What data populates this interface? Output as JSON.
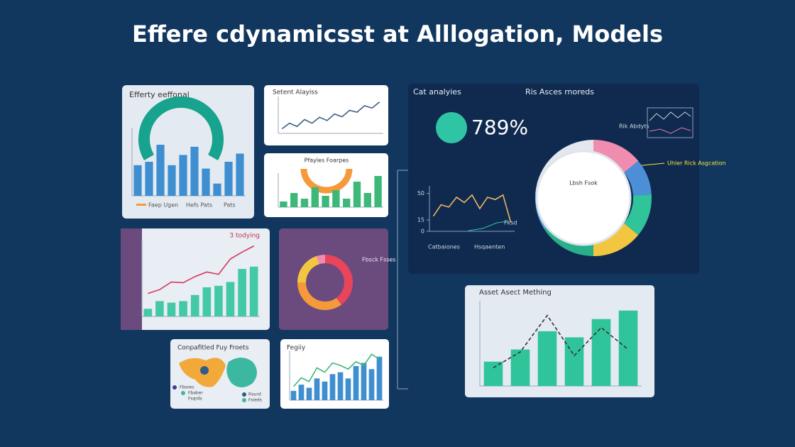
{
  "title": "Effere cdynamicsst at Alllogation, Models",
  "efficiency": {
    "title": "Efferty eeffonal",
    "legend": [
      "Faep Ugen",
      "Hefs Pats",
      "Pats"
    ],
    "ylim": [
      0,
      100
    ],
    "bars": {
      "color": "#3f8fd0",
      "values": [
        45,
        50,
        75,
        45,
        60,
        72,
        40,
        18,
        50,
        62
      ]
    }
  },
  "sentiment": {
    "title": "Setent Alayiss",
    "ylim": [
      0,
      80
    ],
    "line": {
      "color": "#3d5f86",
      "values": [
        10,
        22,
        15,
        30,
        22,
        35,
        28,
        42,
        36,
        50,
        46,
        60,
        55,
        68
      ]
    }
  },
  "profiles": {
    "title": "Pfayles Foarpes",
    "ylim": [
      0,
      60
    ],
    "bars": {
      "color": "#3cb878",
      "values": [
        10,
        25,
        15,
        35,
        20,
        30,
        15,
        45,
        25,
        55
      ]
    }
  },
  "trend": {
    "title": "3 todying",
    "ylim": [
      0,
      100
    ],
    "bars": {
      "color": "#43c9a5",
      "values": [
        10,
        20,
        18,
        20,
        28,
        38,
        40,
        45,
        62,
        65
      ]
    },
    "line": {
      "color": "#d8385a",
      "values": [
        30,
        35,
        45,
        44,
        52,
        58,
        55,
        75,
        84,
        92
      ]
    }
  },
  "ring": {
    "title": "Fbsck Fsses",
    "colors": [
      "#e8455a",
      "#f59a3a",
      "#f2c640",
      "#f08cb0"
    ],
    "values": [
      40,
      35,
      20,
      5
    ]
  },
  "regions": {
    "title": "Conpafitled Fuy Froets",
    "legend": [
      "Fbsoec",
      "Fbaber",
      "Fsqrds",
      "Fisurd",
      "Fsieds"
    ]
  },
  "equity": {
    "title": "Fegiiy",
    "ylim": [
      0,
      80
    ],
    "bars": {
      "color": "#3f8fd0",
      "values": [
        15,
        25,
        20,
        35,
        30,
        42,
        45,
        35,
        55,
        60,
        50,
        70
      ]
    },
    "line": {
      "color": "#3cb878",
      "values": [
        22,
        36,
        30,
        52,
        45,
        60,
        56,
        50,
        62,
        56,
        74,
        66
      ]
    }
  },
  "risk": {
    "title": "Cat analyies",
    "subtitle": "Ris Asces rnoreds",
    "big_value": "789%",
    "side_label": "Rik Abdyts",
    "callout": "Uhler Rick Asgcation",
    "center": "Lbsh Fsok",
    "axis_labels": [
      "Catbaiones",
      "Hsqaenten"
    ],
    "line_note": "Fksd",
    "ylim": [
      0,
      60
    ],
    "yticks": [
      0,
      15,
      50
    ],
    "line": {
      "color": "#f2b36a",
      "values": [
        20,
        35,
        32,
        45,
        38,
        48,
        30,
        45,
        42,
        48,
        12
      ]
    },
    "donut": {
      "colors": [
        "#f08cb0",
        "#4d8fd6",
        "#2fc49a",
        "#f2c640",
        "#27b08a",
        "#5aa0e0",
        "#e4e8ee"
      ],
      "values": [
        14,
        10,
        12,
        14,
        16,
        10,
        24
      ]
    }
  },
  "matching": {
    "title": "Asset Asect Mething",
    "ylim": [
      0,
      70
    ],
    "bars": {
      "color": "#2fc49a",
      "values": [
        20,
        30,
        45,
        40,
        55,
        62
      ]
    },
    "line": {
      "color": "#333333",
      "values": [
        15,
        28,
        58,
        25,
        48,
        30
      ]
    }
  }
}
